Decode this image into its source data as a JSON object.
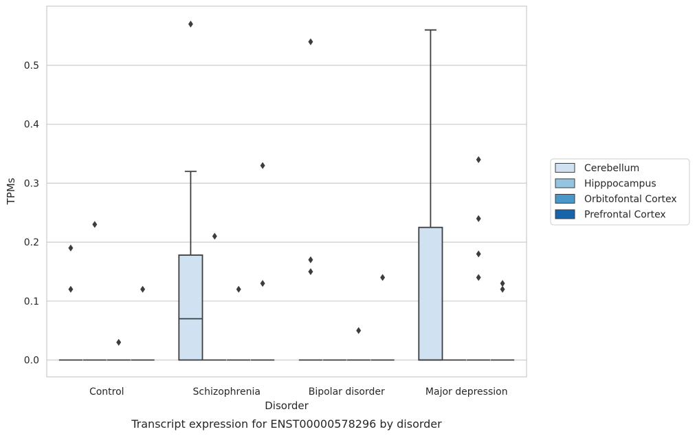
{
  "chart_data": {
    "type": "box",
    "title": "",
    "caption": "Transcript expression for ENST00000578296 by disorder",
    "xlabel": "Disorder",
    "ylabel": "TPMs",
    "ylim": [
      -0.028,
      0.6
    ],
    "yticks": [
      0.0,
      0.1,
      0.2,
      0.3,
      0.4,
      0.5
    ],
    "ytick_labels": [
      "0.0",
      "0.1",
      "0.2",
      "0.3",
      "0.4",
      "0.5"
    ],
    "grid": "horizontal",
    "legend_position": "right",
    "categories": [
      "Control",
      "Schizophrenia",
      "Bipolar disorder",
      "Major depression"
    ],
    "series": [
      {
        "name": "Cerebellum",
        "color": "#d0e1f2",
        "boxes": [
          {
            "q1": 0,
            "median": 0,
            "q3": 0,
            "whisker_low": 0,
            "whisker_high": 0,
            "outliers": [
              0.12,
              0.19
            ]
          },
          {
            "q1": 0,
            "median": 0.07,
            "q3": 0.178,
            "whisker_low": 0,
            "whisker_high": 0.32,
            "outliers": [
              0.57
            ]
          },
          {
            "q1": 0,
            "median": 0,
            "q3": 0,
            "whisker_low": 0,
            "whisker_high": 0,
            "outliers": [
              0.15,
              0.17,
              0.54
            ]
          },
          {
            "q1": 0,
            "median": 0,
            "q3": 0.225,
            "whisker_low": 0,
            "whisker_high": 0.56,
            "outliers": []
          }
        ]
      },
      {
        "name": "Hipppocampus",
        "color": "#94c4df",
        "boxes": [
          {
            "q1": 0,
            "median": 0,
            "q3": 0,
            "whisker_low": 0,
            "whisker_high": 0,
            "outliers": [
              0.23
            ]
          },
          {
            "q1": 0,
            "median": 0,
            "q3": 0,
            "whisker_low": 0,
            "whisker_high": 0,
            "outliers": [
              0.21
            ]
          },
          {
            "q1": 0,
            "median": 0,
            "q3": 0,
            "whisker_low": 0,
            "whisker_high": 0,
            "outliers": []
          },
          {
            "q1": 0,
            "median": 0,
            "q3": 0,
            "whisker_low": 0,
            "whisker_high": 0,
            "outliers": []
          }
        ]
      },
      {
        "name": "Orbitofontal Cortex",
        "color": "#4a98c9",
        "boxes": [
          {
            "q1": 0,
            "median": 0,
            "q3": 0,
            "whisker_low": 0,
            "whisker_high": 0,
            "outliers": [
              0.03
            ]
          },
          {
            "q1": 0,
            "median": 0,
            "q3": 0,
            "whisker_low": 0,
            "whisker_high": 0,
            "outliers": [
              0.12
            ]
          },
          {
            "q1": 0,
            "median": 0,
            "q3": 0,
            "whisker_low": 0,
            "whisker_high": 0,
            "outliers": [
              0.05
            ]
          },
          {
            "q1": 0,
            "median": 0,
            "q3": 0,
            "whisker_low": 0,
            "whisker_high": 0,
            "outliers": [
              0.18,
              0.24,
              0.14,
              0.34
            ]
          }
        ]
      },
      {
        "name": "Prefrontal Cortex",
        "color": "#1764ab",
        "boxes": [
          {
            "q1": 0,
            "median": 0,
            "q3": 0,
            "whisker_low": 0,
            "whisker_high": 0,
            "outliers": [
              0.12
            ]
          },
          {
            "q1": 0,
            "median": 0,
            "q3": 0,
            "whisker_low": 0,
            "whisker_high": 0,
            "outliers": [
              0.13,
              0.33
            ]
          },
          {
            "q1": 0,
            "median": 0,
            "q3": 0,
            "whisker_low": 0,
            "whisker_high": 0,
            "outliers": [
              0.14
            ]
          },
          {
            "q1": 0,
            "median": 0,
            "q3": 0,
            "whisker_low": 0,
            "whisker_high": 0,
            "outliers": [
              0.12,
              0.13
            ]
          }
        ]
      }
    ]
  }
}
